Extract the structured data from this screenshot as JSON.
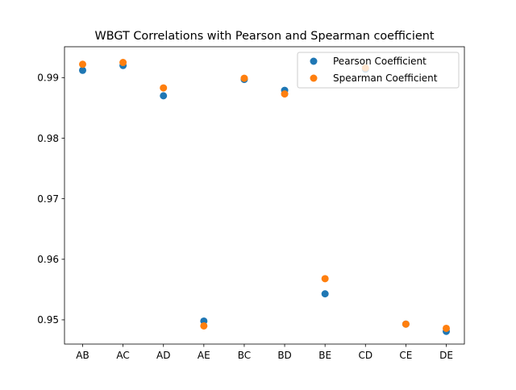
{
  "chart_data": {
    "type": "scatter",
    "title": "WBGT Correlations with Pearson and Spearman coefficient",
    "xlabel": "",
    "ylabel": "",
    "categories": [
      "AB",
      "AC",
      "AD",
      "AE",
      "BC",
      "BD",
      "BE",
      "CD",
      "CE",
      "DE"
    ],
    "ylim": [
      0.946,
      0.9951
    ],
    "yticks": [
      0.95,
      0.96,
      0.97,
      0.98,
      0.99
    ],
    "ytick_labels": [
      "0.95",
      "0.96",
      "0.97",
      "0.98",
      "0.99"
    ],
    "grid": false,
    "legend_position": "top-right",
    "series": [
      {
        "name": "Pearson Coefficient",
        "color": "#1f77b4",
        "values": [
          0.9912,
          0.992,
          0.987,
          0.9498,
          0.9897,
          0.9879,
          0.9543,
          0.9914,
          0.9493,
          0.9481
        ]
      },
      {
        "name": "Spearman Coefficient",
        "color": "#ff7f0e",
        "values": [
          0.9922,
          0.9925,
          0.9883,
          0.949,
          0.9899,
          0.9873,
          0.9568,
          0.9916,
          0.9493,
          0.9486
        ]
      }
    ]
  }
}
